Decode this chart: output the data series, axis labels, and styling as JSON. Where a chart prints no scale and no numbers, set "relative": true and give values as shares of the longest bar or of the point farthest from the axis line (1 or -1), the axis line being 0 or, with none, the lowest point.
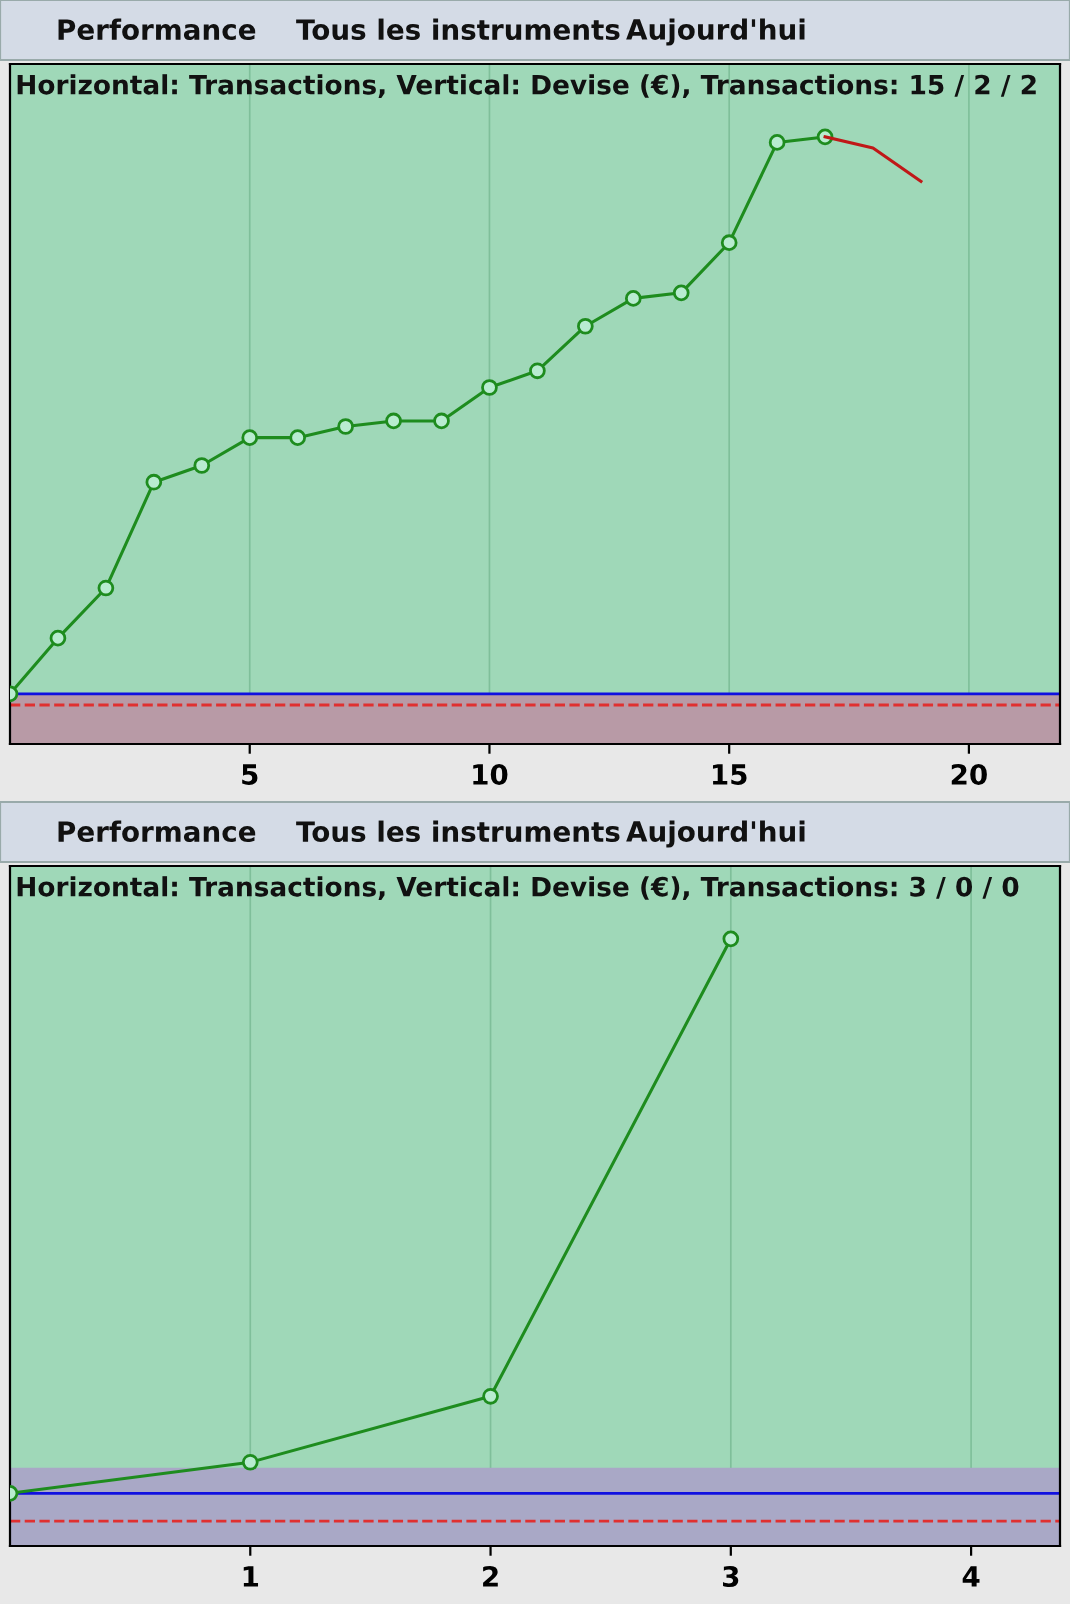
{
  "chart_data": [
    {
      "type": "line",
      "title": "Horizontal: Transactions, Vertical: Devise (€), Transactions: 15 / 2 / 2",
      "annotations": [
        "Performance",
        "Tous les instruments",
        "Aujourd'hui"
      ],
      "relative": true,
      "xlim": [
        0,
        21.9
      ],
      "xticks": [
        5,
        10,
        15,
        20
      ],
      "tick_labels": "x",
      "grid": true,
      "marker": "circle",
      "line_style": "solid",
      "series": [
        {
          "color": "#1e8c1e",
          "x": [
            0,
            1,
            2,
            3,
            4,
            5,
            6,
            7,
            8,
            9,
            10,
            11,
            12,
            13,
            14,
            15,
            16,
            17
          ],
          "values": [
            0,
            0.1,
            0.19,
            0.38,
            0.41,
            0.46,
            0.46,
            0.48,
            0.49,
            0.49,
            0.55,
            0.58,
            0.66,
            0.71,
            0.72,
            0.81,
            0.99,
            1
          ]
        },
        {
          "color": "#c01818",
          "x": [
            17,
            18,
            19
          ],
          "values": [
            1,
            0.98,
            0.92
          ],
          "marker": "none"
        }
      ],
      "ref_lines": [
        {
          "axis": "y",
          "value": 0,
          "color": "#1010e0",
          "line_style": "solid"
        },
        {
          "axis": "y",
          "value": -0.02,
          "color": "#e03030",
          "line_style": "dashed"
        }
      ],
      "bands": [
        {
          "axis": "y",
          "from": -0.09,
          "to": 0,
          "color": "#b89aa6"
        }
      ]
    },
    {
      "type": "line",
      "title": "Horizontal: Transactions, Vertical: Devise (€), Transactions: 3 / 0 / 0",
      "annotations": [
        "Performance",
        "Tous les instruments",
        "Aujourd'hui"
      ],
      "relative": true,
      "xlim": [
        0,
        4.37
      ],
      "xticks": [
        1,
        2,
        3,
        4
      ],
      "tick_labels": "x",
      "grid": true,
      "marker": "circle",
      "line_style": "solid",
      "series": [
        {
          "color": "#1e8c1e",
          "x": [
            0,
            1,
            2,
            3
          ],
          "values": [
            0,
            0.056,
            0.175,
            1
          ]
        }
      ],
      "ref_lines": [
        {
          "axis": "y",
          "value": 0,
          "color": "#1010e0",
          "line_style": "solid"
        },
        {
          "axis": "y",
          "value": -0.05,
          "color": "#e03030",
          "line_style": "dashed"
        }
      ],
      "bands": [
        {
          "axis": "y",
          "from": -0.095,
          "to": 0.046,
          "color": "#a9a8c6"
        }
      ]
    }
  ]
}
